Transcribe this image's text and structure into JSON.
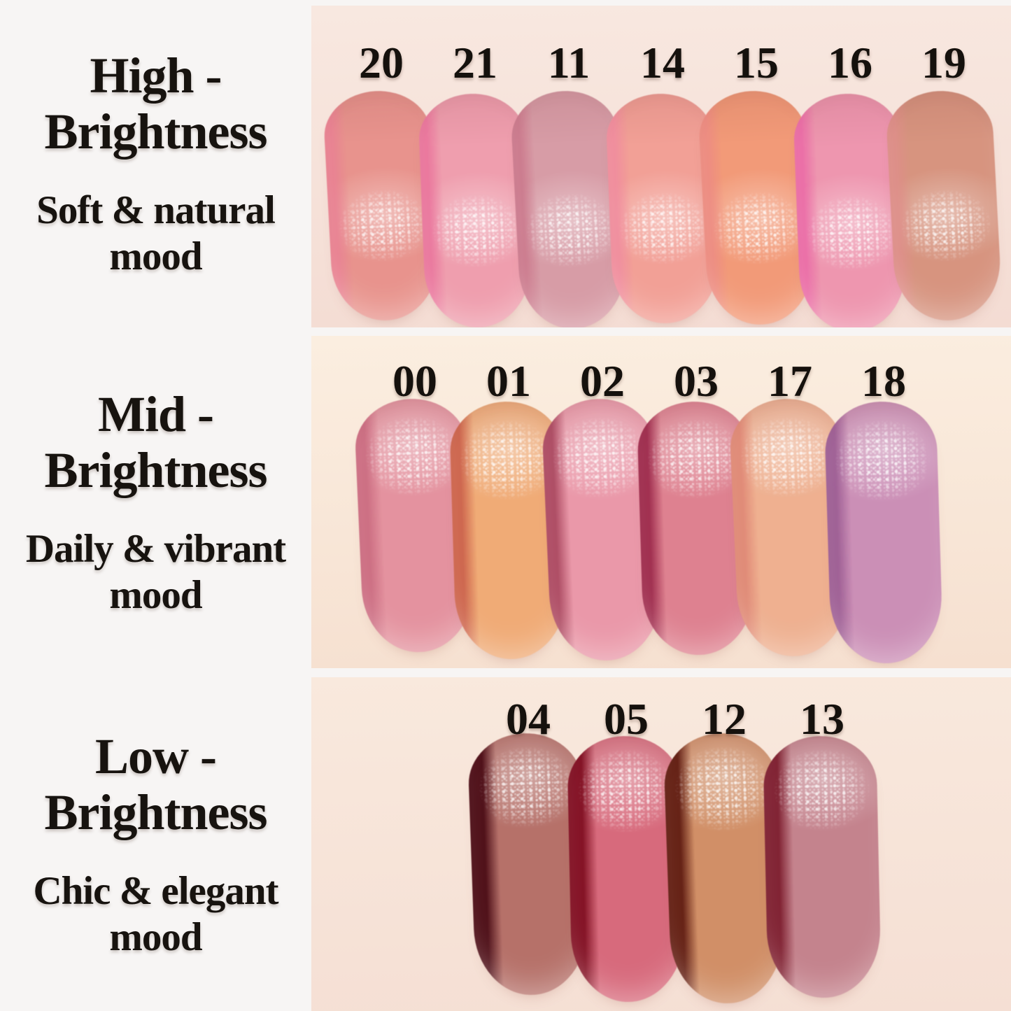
{
  "page": {
    "background": "#f7f5f4",
    "text_color": "#17130f"
  },
  "rows": [
    {
      "name": "high-brightness",
      "title": [
        "High -",
        "Brightness"
      ],
      "subtitle": [
        "Soft & natural",
        "mood"
      ],
      "skin": {
        "top": "#f8e8e0",
        "bottom": "#f4dcd3"
      },
      "swatches": [
        {
          "label": "20",
          "body": "#e6948e",
          "edge": "#e77f92"
        },
        {
          "label": "21",
          "body": "#ed9fae",
          "edge": "#e76f99"
        },
        {
          "label": "11",
          "body": "#d69ca6",
          "edge": "#c77488"
        },
        {
          "label": "14",
          "body": "#f0a097",
          "edge": "#ee8a9e"
        },
        {
          "label": "15",
          "body": "#f09a79",
          "edge": "#ea8a84"
        },
        {
          "label": "16",
          "body": "#ec97af",
          "edge": "#e765a3"
        },
        {
          "label": "19",
          "body": "#d59480",
          "edge": "#dd8d8b"
        }
      ]
    },
    {
      "name": "mid-brightness",
      "title": [
        "Mid -",
        "Brightness"
      ],
      "subtitle": [
        "Daily & vibrant",
        "mood"
      ],
      "skin": {
        "top": "#fbeee0",
        "bottom": "#f6e0d0"
      },
      "swatches": [
        {
          "label": "00",
          "body": "#e2939f",
          "edge": "#c96d81"
        },
        {
          "label": "01",
          "body": "#eeab78",
          "edge": "#c9624c"
        },
        {
          "label": "02",
          "body": "#e899a9",
          "edge": "#a8485f"
        },
        {
          "label": "03",
          "body": "#dc8290",
          "edge": "#99294a"
        },
        {
          "label": "17",
          "body": "#edb091",
          "edge": "#dd8876"
        },
        {
          "label": "18",
          "body": "#ca8fb5",
          "edge": "#9b5d92"
        }
      ]
    },
    {
      "name": "low-brightness",
      "title": [
        "Low -",
        "Brightness"
      ],
      "subtitle": [
        "Chic & elegant",
        "mood"
      ],
      "skin": {
        "top": "#f9e9dd",
        "bottom": "#f5dfd4"
      },
      "swatches": [
        {
          "label": "04",
          "body": "#b4716a",
          "edge": "#4a0d16"
        },
        {
          "label": "05",
          "body": "#d56b7c",
          "edge": "#7e1022"
        },
        {
          "label": "12",
          "body": "#cf8f68",
          "edge": "#5f1d13"
        },
        {
          "label": "13",
          "body": "#c3838d",
          "edge": "#7c2030"
        }
      ]
    }
  ]
}
